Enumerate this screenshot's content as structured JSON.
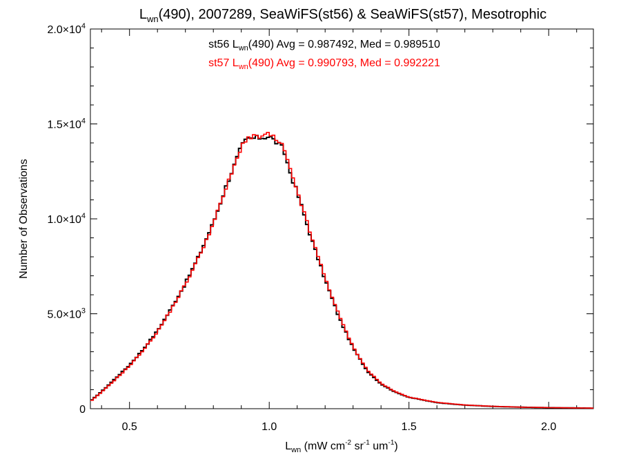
{
  "chart_data": {
    "type": "line",
    "title": {
      "main": "L",
      "sub": "wn",
      "rest": "(490), 2007289, SeaWiFS(st56) & SeaWiFS(st57), Mesotrophic"
    },
    "xlabel": {
      "main": "L",
      "sub": "wn",
      "rest1": " (mW cm",
      "sup1": "-2",
      "rest2": " sr",
      "sup2": "-1",
      "rest3": " um",
      "sup3": "-1",
      "rest4": ")"
    },
    "ylabel": "Number of Observations",
    "xlim": [
      0.36,
      2.16
    ],
    "ylim": [
      0,
      20000
    ],
    "x_ticks": [
      {
        "value": 0.5,
        "label": "0.5"
      },
      {
        "value": 1.0,
        "label": "1.0"
      },
      {
        "value": 1.5,
        "label": "1.5"
      },
      {
        "value": 2.0,
        "label": "2.0"
      }
    ],
    "y_ticks": [
      {
        "value": 0,
        "mant": "0",
        "exp": ""
      },
      {
        "value": 5000,
        "mant": "5.0×10",
        "exp": "3"
      },
      {
        "value": 10000,
        "mant": "1.0×10",
        "exp": "4"
      },
      {
        "value": 15000,
        "mant": "1.5×10",
        "exp": "4"
      },
      {
        "value": 20000,
        "mant": "2.0×10",
        "exp": "4"
      }
    ],
    "annotations": [
      {
        "prefix": "st56 L",
        "sub": "wn",
        "rest": "(490) Avg = 0.987492, Med = 0.989510",
        "color": "#000000"
      },
      {
        "prefix": "st57 L",
        "sub": "wn",
        "rest": "(490) Avg = 0.990793, Med = 0.992221",
        "color": "#ff0000"
      }
    ],
    "series": [
      {
        "color": "#000000",
        "x": [
          0.36,
          0.4,
          0.45,
          0.5,
          0.55,
          0.6,
          0.65,
          0.7,
          0.75,
          0.8,
          0.85,
          0.88,
          0.9,
          0.92,
          0.95,
          0.98,
          1.0,
          1.02,
          1.05,
          1.08,
          1.1,
          1.15,
          1.2,
          1.25,
          1.3,
          1.35,
          1.4,
          1.45,
          1.5,
          1.6,
          1.7,
          1.8,
          1.9,
          2.0,
          2.1,
          2.16
        ],
        "y": [
          400,
          900,
          1600,
          2300,
          3150,
          4100,
          5300,
          6600,
          8100,
          9800,
          11900,
          13000,
          13800,
          14200,
          14250,
          14300,
          14350,
          14100,
          13700,
          12200,
          11400,
          9000,
          6800,
          4800,
          3200,
          2000,
          1300,
          880,
          600,
          320,
          190,
          120,
          80,
          55,
          40,
          30
        ]
      },
      {
        "color": "#ff0000",
        "x": [
          0.36,
          0.4,
          0.45,
          0.5,
          0.55,
          0.6,
          0.65,
          0.7,
          0.75,
          0.8,
          0.85,
          0.88,
          0.9,
          0.92,
          0.95,
          0.98,
          1.0,
          1.02,
          1.05,
          1.08,
          1.1,
          1.15,
          1.2,
          1.25,
          1.3,
          1.35,
          1.4,
          1.45,
          1.5,
          1.6,
          1.7,
          1.8,
          1.9,
          2.0,
          2.1,
          2.16
        ],
        "y": [
          380,
          870,
          1550,
          2250,
          3100,
          4050,
          5250,
          6550,
          8050,
          9750,
          11800,
          12950,
          13850,
          14250,
          14300,
          14350,
          14500,
          14200,
          13800,
          12300,
          11500,
          9100,
          6900,
          4900,
          3250,
          2050,
          1330,
          900,
          610,
          330,
          195,
          125,
          82,
          56,
          41,
          30
        ]
      }
    ]
  }
}
